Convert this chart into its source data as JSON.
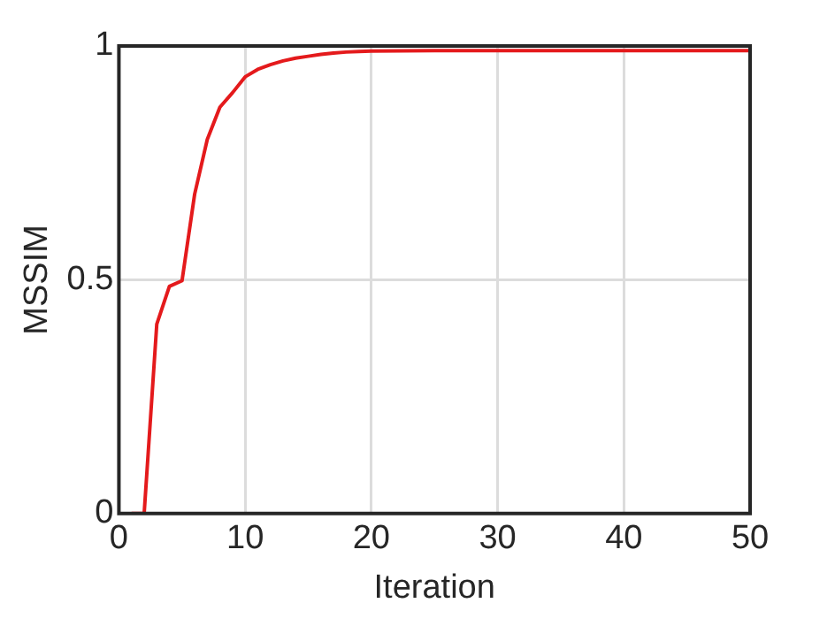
{
  "chart_data": {
    "type": "line",
    "xlabel": "Iteration",
    "ylabel": "MSSIM",
    "x": [
      1,
      2,
      3,
      4,
      5,
      6,
      7,
      8,
      9,
      10,
      11,
      12,
      13,
      14,
      15,
      16,
      17,
      18,
      19,
      20,
      25,
      30,
      35,
      40,
      45,
      50
    ],
    "series": [
      {
        "color": "#e41a1c",
        "values": [
          0,
          0,
          0.405,
          0.486,
          0.498,
          0.683,
          0.8,
          0.869,
          0.9,
          0.934,
          0.95,
          0.96,
          0.968,
          0.974,
          0.978,
          0.982,
          0.985,
          0.987,
          0.988,
          0.989,
          0.99,
          0.99,
          0.99,
          0.99,
          0.99,
          0.99
        ]
      }
    ],
    "xlim": [
      0,
      50
    ],
    "xticks": [
      0,
      10,
      20,
      30,
      40,
      50
    ],
    "ylim": [
      0,
      1
    ],
    "yticks": [
      0,
      0.5,
      1
    ],
    "grid": true,
    "legend": false,
    "marker": "none",
    "line_style": "solid"
  }
}
